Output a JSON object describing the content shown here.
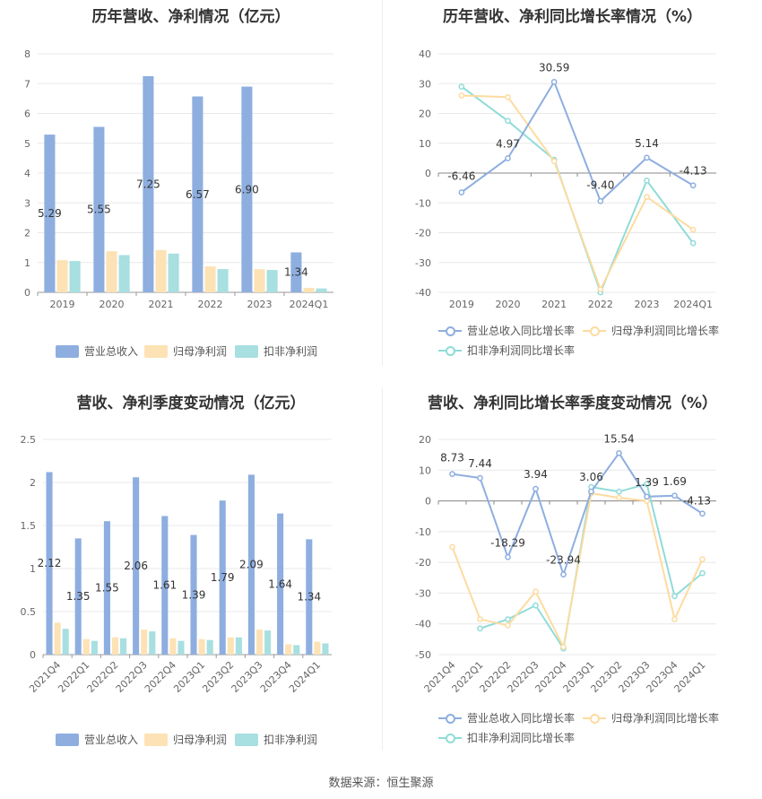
{
  "colors": {
    "revenue": "#8eaee0",
    "net_profit": "#fde2b5",
    "deducted_profit": "#a8dfe0",
    "revenue_line": "#8eaee0",
    "net_profit_line": "#fddba0",
    "deducted_profit_line": "#8fdcd8"
  },
  "source": "数据来源：恒生聚源",
  "chart_data": [
    {
      "type": "bar",
      "title": "历年营收、净利情况（亿元）",
      "categories": [
        "2019",
        "2020",
        "2021",
        "2022",
        "2023",
        "2024Q1"
      ],
      "ylim": [
        0,
        8
      ],
      "yticks": [
        "0",
        "1",
        "2",
        "3",
        "4",
        "5",
        "6",
        "7",
        "8"
      ],
      "series": [
        {
          "name": "营业总收入",
          "values": [
            5.29,
            5.55,
            7.25,
            6.57,
            6.9,
            1.34
          ],
          "labels": [
            "5.29",
            "5.55",
            "7.25",
            "6.57",
            "6.90",
            "1.34"
          ]
        },
        {
          "name": "归母净利润",
          "values": [
            1.08,
            1.38,
            1.42,
            0.87,
            0.78,
            0.15
          ]
        },
        {
          "name": "扣非净利润",
          "values": [
            1.05,
            1.25,
            1.3,
            0.78,
            0.75,
            0.13
          ]
        }
      ],
      "legend": "bottom"
    },
    {
      "type": "line",
      "title": "历年营收、净利同比增长率情况（%）",
      "categories": [
        "2019",
        "2020",
        "2021",
        "2022",
        "2023",
        "2024Q1"
      ],
      "ylim": [
        -40,
        40
      ],
      "yticks": [
        "40",
        "30",
        "20",
        "10",
        "0",
        "-10",
        "-20",
        "-30",
        "-40"
      ],
      "series": [
        {
          "name": "营业总收入同比增长率",
          "values": [
            -6.46,
            4.97,
            30.59,
            -9.4,
            5.14,
            -4.13
          ],
          "labels": [
            "-6.46",
            "4.97",
            "30.59",
            "-9.40",
            "5.14",
            "-4.13"
          ]
        },
        {
          "name": "归母净利润同比增长率",
          "values": [
            26.0,
            25.5,
            4.0,
            -39.0,
            -8.0,
            -19.0
          ]
        },
        {
          "name": "扣非净利润同比增长率",
          "values": [
            29.0,
            17.5,
            4.5,
            -40.0,
            -2.5,
            -23.5
          ]
        }
      ],
      "legend": "bottom"
    },
    {
      "type": "bar",
      "title": "营收、净利季度变动情况（亿元）",
      "categories": [
        "2021Q4",
        "2022Q1",
        "2022Q2",
        "2022Q3",
        "2022Q4",
        "2023Q1",
        "2023Q2",
        "2023Q3",
        "2023Q4",
        "2024Q1"
      ],
      "ylim": [
        0,
        2.5
      ],
      "yticks": [
        "0",
        "0.5",
        "1",
        "1.5",
        "2",
        "2.5"
      ],
      "series": [
        {
          "name": "营业总收入",
          "values": [
            2.12,
            1.35,
            1.55,
            2.06,
            1.61,
            1.39,
            1.79,
            2.09,
            1.64,
            1.34
          ],
          "labels": [
            "2.12",
            "1.35",
            "1.55",
            "2.06",
            "1.61",
            "1.39",
            "1.79",
            "2.09",
            "1.64",
            "1.34"
          ]
        },
        {
          "name": "归母净利润",
          "values": [
            0.37,
            0.18,
            0.2,
            0.29,
            0.19,
            0.18,
            0.2,
            0.29,
            0.12,
            0.15
          ]
        },
        {
          "name": "扣非净利润",
          "values": [
            0.3,
            0.16,
            0.19,
            0.27,
            0.16,
            0.17,
            0.2,
            0.28,
            0.11,
            0.13
          ]
        }
      ],
      "legend": "bottom"
    },
    {
      "type": "line",
      "title": "营收、净利同比增长率季度变动情况（%）",
      "categories": [
        "2021Q4",
        "2022Q1",
        "2022Q2",
        "2022Q3",
        "2022Q4",
        "2023Q1",
        "2023Q2",
        "2023Q3",
        "2023Q4",
        "2024Q1"
      ],
      "ylim": [
        -50,
        20
      ],
      "yticks": [
        "20",
        "10",
        "0",
        "-10",
        "-20",
        "-30",
        "-40",
        "-50"
      ],
      "series": [
        {
          "name": "营业总收入同比增长率",
          "values": [
            8.73,
            7.44,
            -18.29,
            3.94,
            -23.94,
            3.06,
            15.54,
            1.39,
            1.69,
            -4.13
          ],
          "labels": [
            "8.73",
            "7.44",
            "-18.29",
            "3.94",
            "-23.94",
            "3.06",
            "15.54",
            "1.39",
            "1.69",
            "-4.13"
          ]
        },
        {
          "name": "归母净利润同比增长率",
          "values": [
            -15.0,
            -38.5,
            -40.5,
            -29.5,
            -47.5,
            2.5,
            1.0,
            0.0,
            -38.5,
            -19.0
          ]
        },
        {
          "name": "扣非净利润同比增长率",
          "values": [
            null,
            -41.5,
            -38.5,
            -34.0,
            -48.0,
            4.5,
            3.0,
            5.5,
            -31.0,
            -23.5
          ]
        }
      ],
      "legend": "bottom"
    }
  ]
}
